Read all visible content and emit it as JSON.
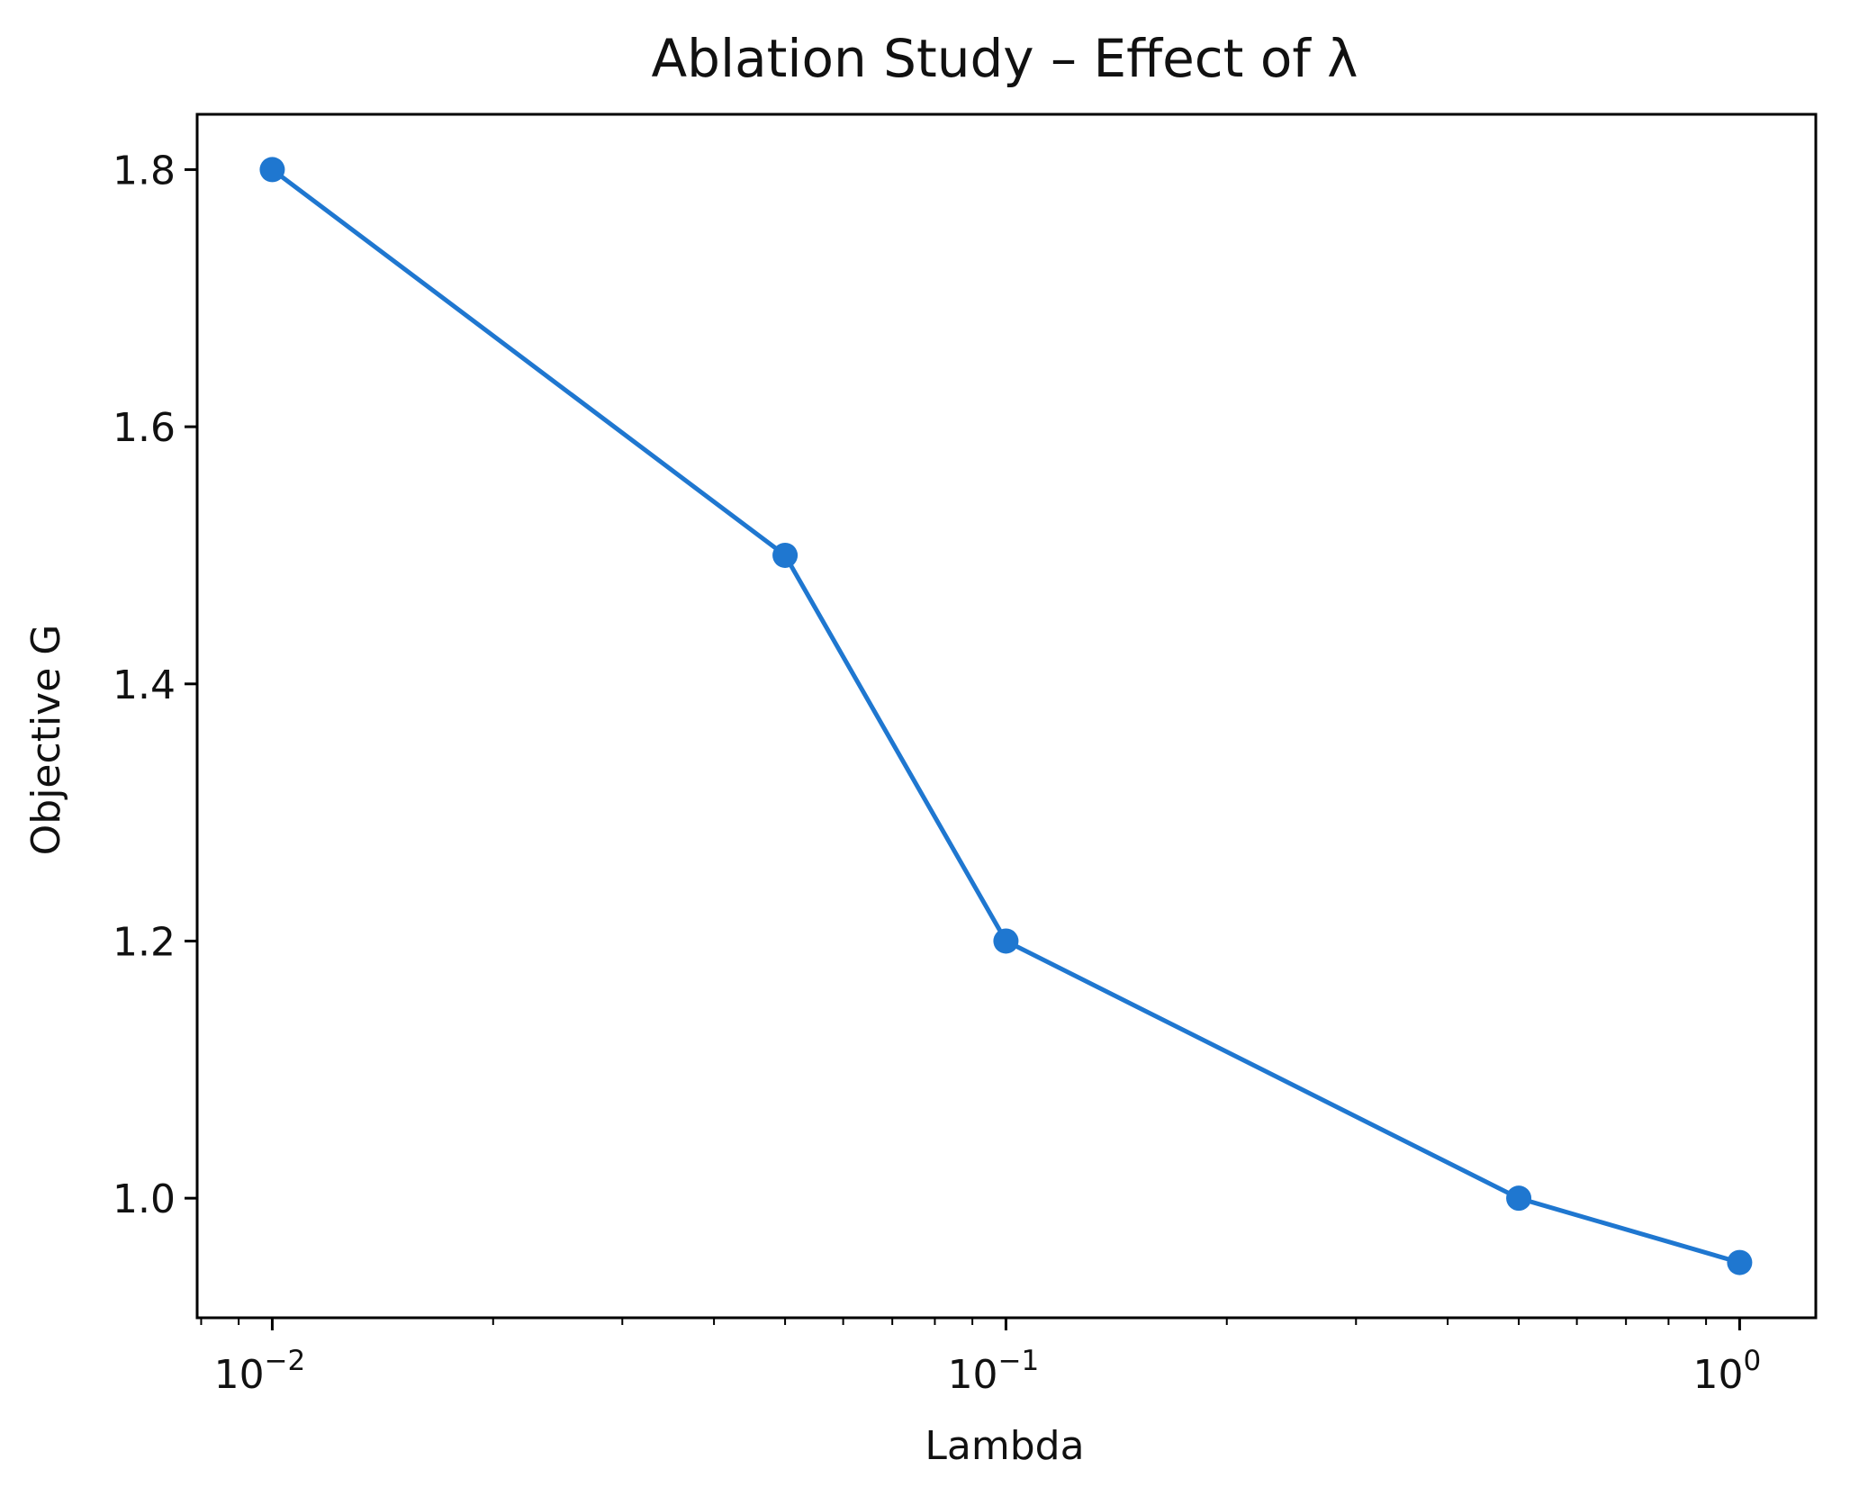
{
  "chart_data": {
    "type": "line",
    "title": "Ablation Study – Effect of λ",
    "xlabel": "Lambda",
    "ylabel": "Objective G",
    "xscale": "log",
    "xlim": [
      0.0079,
      1.27
    ],
    "ylim": [
      0.907,
      1.843
    ],
    "x_ticks": [
      {
        "value": 0.01,
        "base": "10",
        "exp": "−2"
      },
      {
        "value": 0.1,
        "base": "10",
        "exp": "−1"
      },
      {
        "value": 1,
        "base": "10",
        "exp": "0"
      }
    ],
    "y_ticks": [
      {
        "value": 1.0,
        "label": "1.0"
      },
      {
        "value": 1.2,
        "label": "1.2"
      },
      {
        "value": 1.4,
        "label": "1.4"
      },
      {
        "value": 1.6,
        "label": "1.6"
      },
      {
        "value": 1.8,
        "label": "1.8"
      }
    ],
    "grid": false,
    "series": [
      {
        "name": "Objective G",
        "color": "#1f77d0",
        "marker": "circle",
        "x": [
          0.01,
          0.05,
          0.1,
          0.5,
          1.0
        ],
        "values": [
          1.8,
          1.5,
          1.2,
          1.0,
          0.95
        ]
      }
    ]
  }
}
